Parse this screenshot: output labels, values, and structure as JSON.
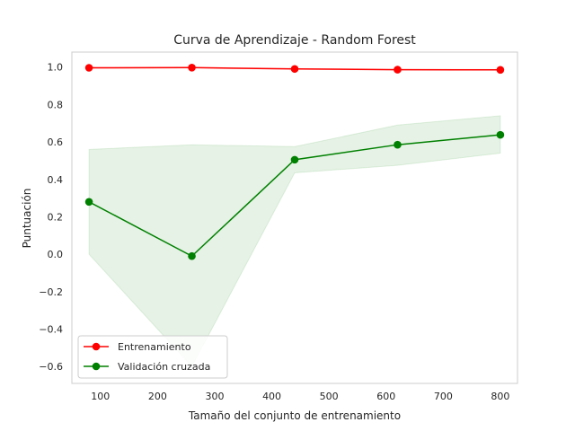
{
  "chart_data": {
    "type": "line",
    "title": "Curva de Aprendizaje - Random Forest",
    "xlabel": "Tamaño del conjunto de entrenamiento",
    "ylabel": "Puntuación",
    "x": [
      80,
      260,
      440,
      620,
      800
    ],
    "xlim": [
      50,
      830
    ],
    "ylim": [
      -0.69,
      1.08
    ],
    "xticks": [
      100,
      200,
      300,
      400,
      500,
      600,
      700,
      800
    ],
    "yticks": [
      1.0,
      0.8,
      0.6,
      0.4,
      0.2,
      0.0,
      -0.2,
      -0.4,
      -0.6
    ],
    "xtick_labels": [
      "100",
      "200",
      "300",
      "400",
      "500",
      "600",
      "700",
      "800"
    ],
    "ytick_labels": [
      "1.0",
      "0.8",
      "0.6",
      "0.4",
      "0.2",
      "0.0",
      "−0.2",
      "−0.4",
      "−0.6"
    ],
    "grid": false,
    "legend_position": "lower-left",
    "series": [
      {
        "name": "Entrenamiento",
        "color": "#ff0000",
        "values": [
          0.996,
          0.997,
          0.99,
          0.986,
          0.985
        ],
        "band_lower": [
          0.993,
          0.995,
          0.988,
          0.984,
          0.983
        ],
        "band_upper": [
          0.999,
          0.999,
          0.992,
          0.988,
          0.987
        ]
      },
      {
        "name": "Validación cruzada",
        "color": "#008000",
        "band_color": "#008000",
        "values": [
          0.28,
          -0.01,
          0.505,
          0.585,
          0.638
        ],
        "band_lower": [
          0.0,
          -0.6,
          0.435,
          0.475,
          0.54
        ],
        "band_upper": [
          0.56,
          0.585,
          0.575,
          0.69,
          0.74
        ]
      }
    ]
  }
}
